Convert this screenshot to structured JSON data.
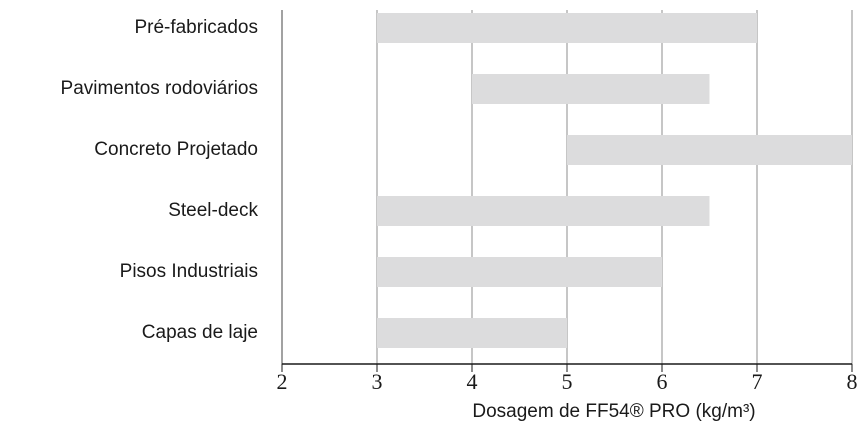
{
  "chart_data": {
    "type": "floating-bar",
    "x_label": "Dosagem de FF54® PRO (kg/m³)",
    "categories": [
      "Pré-fabricados",
      "Pavimentos rodoviários",
      "Concreto Projetado",
      "Steel-deck",
      "Pisos Industriais",
      "Capas de laje"
    ],
    "starts": [
      3,
      4,
      5,
      3,
      3,
      3
    ],
    "ends": [
      7,
      6.5,
      8,
      6.5,
      6,
      5
    ],
    "color": "#dcdcdd",
    "xlim": [
      2,
      8
    ],
    "xticks": [
      2,
      3,
      4,
      5,
      6,
      7,
      8
    ],
    "grid": true
  }
}
